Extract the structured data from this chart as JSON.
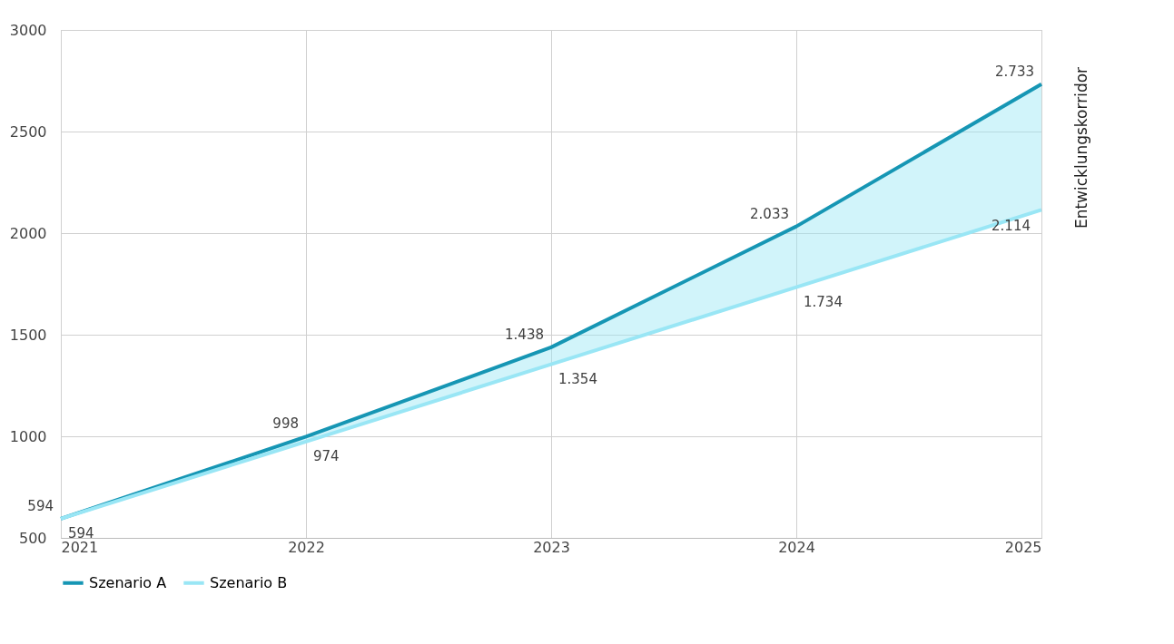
{
  "chart_data": {
    "type": "line",
    "categories": [
      "2021",
      "2022",
      "2023",
      "2024",
      "2025"
    ],
    "series": [
      {
        "name": "Szenario A",
        "color": "#1696b4",
        "values": [
          594,
          998,
          1438,
          2033,
          2733
        ],
        "value_labels": [
          "594",
          "998",
          "1.438",
          "2.033",
          "2.733"
        ]
      },
      {
        "name": "Szenario B",
        "color": "#99e6f5",
        "values": [
          594,
          974,
          1354,
          1734,
          2114
        ],
        "value_labels": [
          "594",
          "974",
          "1.354",
          "1.734",
          "2.114"
        ],
        "lower": [
          594,
          974,
          1354,
          1734,
          2114
        ],
        "upper": [
          594,
          998,
          1438,
          2033,
          2733
        ]
      }
    ],
    "ylim": [
      500,
      3000
    ],
    "yticks": [
      500,
      1000,
      1500,
      2000,
      2500,
      3000
    ],
    "grid": true,
    "legend": "bottom",
    "marker": "none",
    "line_style": "solid",
    "annotations": [
      "Entwicklungskorridor"
    ]
  }
}
